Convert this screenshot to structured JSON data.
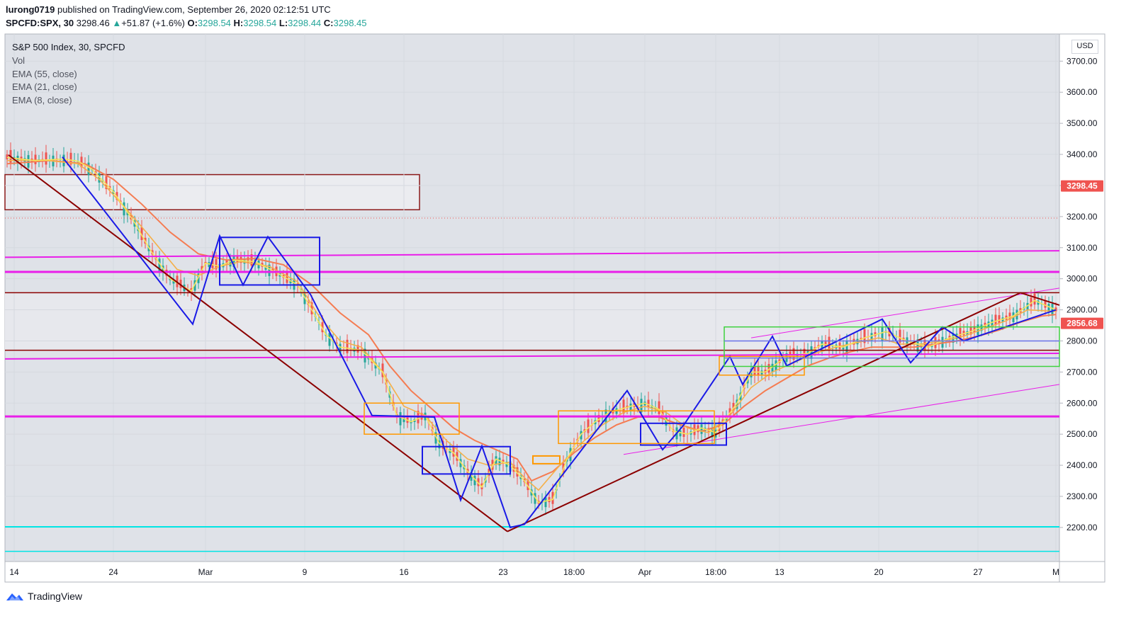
{
  "header": {
    "publisher": "lurong0719",
    "published_text": " published on TradingView.com, September 26, 2020 02:12:51 UTC",
    "symbol": "SPCFD:SPX, 30",
    "last": "3298.46",
    "change": "+51.87 (+1.6%)",
    "o_label": "O:",
    "o_value": "3298.54",
    "h_label": "H:",
    "h_value": "3298.54",
    "l_label": "L:",
    "l_value": "3298.44",
    "c_label": "C:",
    "c_value": "3298.45"
  },
  "legend": {
    "title": "S&P 500 Index, 30, SPCFD",
    "items": [
      "Vol",
      "EMA (55, close)",
      "EMA (21, close)",
      "EMA (8, close)"
    ]
  },
  "currency": "USD",
  "footer": {
    "brand": "TradingView"
  },
  "colors": {
    "background": "#dfe2e8",
    "magenta": "#e91ee9",
    "darkred": "#8b0000",
    "blue": "#1a1ae6",
    "cyan": "#00e5e5",
    "orange": "#ff9800",
    "ema55": "#f57c52",
    "ema21": "#f5b04a",
    "ema8": "#f7e55a",
    "price_label": "#ef5350"
  },
  "chart_data": {
    "type": "candlestick",
    "y_axis": {
      "ticks": [
        "3700.00",
        "3600.00",
        "3500.00",
        "3400.00",
        "3300.00",
        "3200.00",
        "3100.00",
        "3000.00",
        "2900.00",
        "2800.00",
        "2700.00",
        "2600.00",
        "2500.00",
        "2400.00",
        "2300.00",
        "2200.00"
      ],
      "ylim": [
        2120,
        3760
      ]
    },
    "x_axis": {
      "ticks": [
        "14",
        "24",
        "Mar",
        "9",
        "16",
        "23",
        "18:00",
        "Apr",
        "18:00",
        "13",
        "20",
        "27",
        "M"
      ]
    },
    "price_labels": [
      {
        "value": 3298.45,
        "text": "3298.45"
      },
      {
        "value": 2856.68,
        "text": "2856.68"
      }
    ],
    "horizontal_levels": [
      {
        "value": 3022,
        "color": "magenta"
      },
      {
        "value": 2557,
        "color": "magenta"
      },
      {
        "value": 2202,
        "color": "cyan"
      },
      {
        "value": 2955,
        "color": "darkred"
      },
      {
        "value": 2770,
        "color": "darkred"
      }
    ],
    "ema_8": [
      [
        0,
        3390
      ],
      [
        4,
        3380
      ],
      [
        8,
        3385
      ],
      [
        10,
        3378
      ],
      [
        12,
        3352
      ],
      [
        15,
        3280
      ],
      [
        18,
        3180
      ],
      [
        20,
        3100
      ],
      [
        23,
        3000
      ],
      [
        26,
        2960
      ],
      [
        28,
        3050
      ],
      [
        30,
        3040
      ],
      [
        32,
        3060
      ],
      [
        35,
        3055
      ],
      [
        38,
        3020
      ],
      [
        41,
        2980
      ],
      [
        43,
        2900
      ],
      [
        45,
        2820
      ],
      [
        47,
        2780
      ],
      [
        50,
        2770
      ],
      [
        53,
        2700
      ],
      [
        55,
        2560
      ],
      [
        57,
        2540
      ],
      [
        59,
        2560
      ],
      [
        61,
        2470
      ],
      [
        63,
        2440
      ],
      [
        65,
        2380
      ],
      [
        67,
        2330
      ],
      [
        69,
        2420
      ],
      [
        71,
        2400
      ],
      [
        73,
        2350
      ],
      [
        75,
        2280
      ],
      [
        77,
        2290
      ],
      [
        79,
        2420
      ],
      [
        81,
        2500
      ],
      [
        83,
        2540
      ],
      [
        85,
        2570
      ],
      [
        88,
        2590
      ],
      [
        90,
        2600
      ],
      [
        92,
        2580
      ],
      [
        94,
        2510
      ],
      [
        96,
        2500
      ],
      [
        98,
        2520
      ],
      [
        100,
        2505
      ],
      [
        103,
        2600
      ],
      [
        105,
        2700
      ],
      [
        107,
        2700
      ],
      [
        110,
        2750
      ],
      [
        113,
        2760
      ],
      [
        115,
        2790
      ],
      [
        118,
        2780
      ],
      [
        121,
        2810
      ],
      [
        124,
        2830
      ],
      [
        127,
        2800
      ],
      [
        130,
        2780
      ],
      [
        133,
        2810
      ],
      [
        136,
        2830
      ],
      [
        139,
        2860
      ],
      [
        142,
        2880
      ],
      [
        145,
        2930
      ],
      [
        148,
        2900
      ]
    ],
    "ema_21": [
      [
        0,
        3380
      ],
      [
        5,
        3382
      ],
      [
        10,
        3370
      ],
      [
        13,
        3320
      ],
      [
        17,
        3220
      ],
      [
        20,
        3140
      ],
      [
        24,
        3030
      ],
      [
        27,
        3010
      ],
      [
        30,
        3040
      ],
      [
        33,
        3055
      ],
      [
        37,
        3040
      ],
      [
        41,
        2990
      ],
      [
        44,
        2880
      ],
      [
        47,
        2800
      ],
      [
        50,
        2780
      ],
      [
        53,
        2700
      ],
      [
        56,
        2590
      ],
      [
        59,
        2560
      ],
      [
        62,
        2480
      ],
      [
        65,
        2420
      ],
      [
        68,
        2400
      ],
      [
        71,
        2410
      ],
      [
        73,
        2360
      ],
      [
        75,
        2320
      ],
      [
        78,
        2400
      ],
      [
        81,
        2470
      ],
      [
        84,
        2530
      ],
      [
        87,
        2570
      ],
      [
        90,
        2590
      ],
      [
        93,
        2570
      ],
      [
        96,
        2520
      ],
      [
        99,
        2505
      ],
      [
        102,
        2560
      ],
      [
        105,
        2650
      ],
      [
        108,
        2700
      ],
      [
        111,
        2730
      ],
      [
        114,
        2760
      ],
      [
        117,
        2780
      ],
      [
        120,
        2795
      ],
      [
        123,
        2810
      ],
      [
        126,
        2790
      ],
      [
        129,
        2790
      ],
      [
        132,
        2800
      ],
      [
        135,
        2815
      ],
      [
        138,
        2840
      ],
      [
        141,
        2865
      ],
      [
        144,
        2900
      ],
      [
        148,
        2895
      ]
    ],
    "ema_55": [
      [
        0,
        3370
      ],
      [
        6,
        3380
      ],
      [
        11,
        3370
      ],
      [
        15,
        3320
      ],
      [
        19,
        3240
      ],
      [
        23,
        3150
      ],
      [
        27,
        3080
      ],
      [
        31,
        3060
      ],
      [
        35,
        3065
      ],
      [
        39,
        3045
      ],
      [
        43,
        2980
      ],
      [
        47,
        2890
      ],
      [
        51,
        2820
      ],
      [
        54,
        2720
      ],
      [
        57,
        2640
      ],
      [
        60,
        2580
      ],
      [
        63,
        2520
      ],
      [
        66,
        2480
      ],
      [
        69,
        2450
      ],
      [
        72,
        2420
      ],
      [
        74,
        2350
      ],
      [
        77,
        2380
      ],
      [
        80,
        2440
      ],
      [
        83,
        2490
      ],
      [
        86,
        2530
      ],
      [
        89,
        2555
      ],
      [
        92,
        2555
      ],
      [
        95,
        2530
      ],
      [
        98,
        2510
      ],
      [
        101,
        2530
      ],
      [
        104,
        2590
      ],
      [
        107,
        2640
      ],
      [
        110,
        2680
      ],
      [
        113,
        2720
      ],
      [
        116,
        2745
      ],
      [
        119,
        2765
      ],
      [
        122,
        2780
      ],
      [
        125,
        2780
      ],
      [
        128,
        2780
      ],
      [
        131,
        2790
      ],
      [
        134,
        2800
      ],
      [
        137,
        2815
      ],
      [
        140,
        2835
      ],
      [
        143,
        2860
      ],
      [
        146,
        2880
      ],
      [
        148,
        2885
      ]
    ]
  }
}
